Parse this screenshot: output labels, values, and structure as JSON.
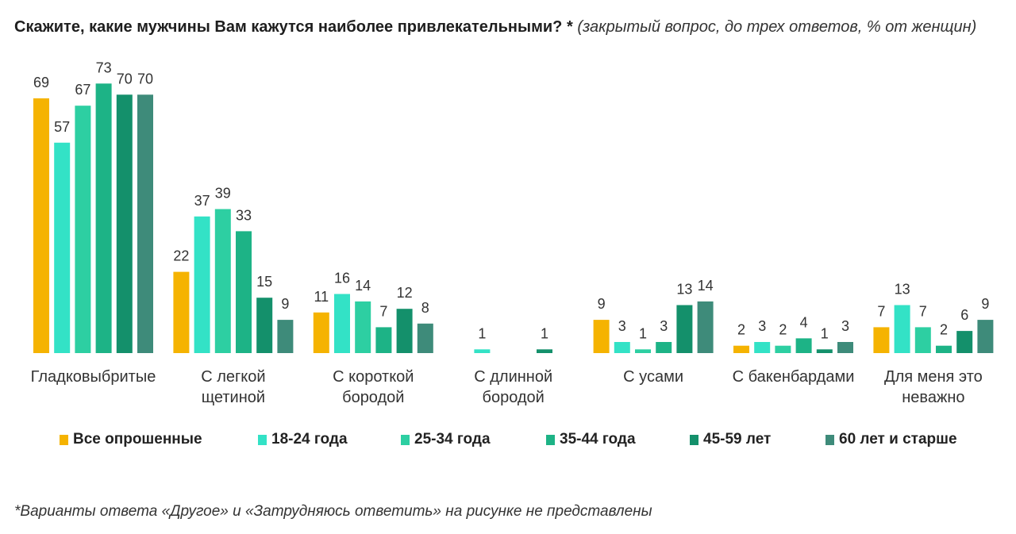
{
  "chart_data": {
    "type": "bar",
    "title": "Скажите, какие мужчины Вам кажутся наиболее привлекательными? *",
    "subtitle": "(закрытый вопрос, до трех ответов, % от женщин)",
    "categories": [
      "Гладковыбритые",
      "С легкой\nщетиной",
      "С короткой\nбородой",
      "С длинной\nбородой",
      "С усами",
      "С бакенбардами",
      "Для меня это\nневажно"
    ],
    "series": [
      {
        "name": "Все опрошенные",
        "color": "#F5B301",
        "values": [
          69,
          22,
          11,
          null,
          9,
          2,
          7
        ]
      },
      {
        "name": "18-24 года",
        "color": "#33E2C6",
        "values": [
          57,
          37,
          16,
          1,
          3,
          3,
          13
        ]
      },
      {
        "name": "25-34 года",
        "color": "#2DCFA2",
        "values": [
          67,
          39,
          14,
          null,
          1,
          2,
          7
        ]
      },
      {
        "name": "35-44 года",
        "color": "#1DB386",
        "values": [
          73,
          33,
          7,
          null,
          3,
          4,
          2
        ]
      },
      {
        "name": "45-59 лет",
        "color": "#14906B",
        "values": [
          70,
          15,
          12,
          1,
          13,
          1,
          6
        ]
      },
      {
        "name": "60 лет и старше",
        "color": "#3E8B7A",
        "values": [
          70,
          9,
          8,
          null,
          14,
          3,
          9
        ]
      }
    ],
    "ylim": [
      0,
      75
    ],
    "grid": false,
    "data_labels": true,
    "legend": "bottom",
    "footnote": "*Варианты ответа «Другое» и «Затрудняюсь ответить» на рисунке не представлены"
  }
}
